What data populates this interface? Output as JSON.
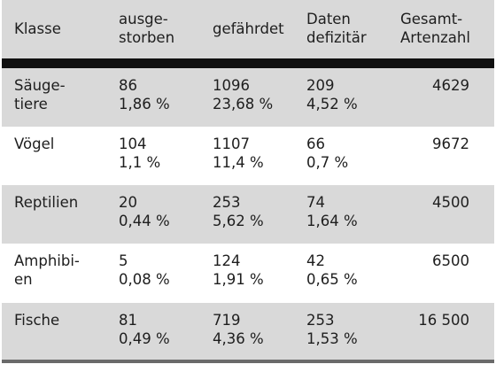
{
  "columns": [
    {
      "line1": "Klasse",
      "line2": ""
    },
    {
      "line1": "ausge-",
      "line2": "storben"
    },
    {
      "line1": "gefährdet",
      "line2": ""
    },
    {
      "line1": "Daten",
      "line2": "defizitär"
    },
    {
      "line1": "Gesamt-",
      "line2": "Artenzahl"
    }
  ],
  "rows": [
    {
      "klasse_1": "Säuge-",
      "klasse_2": "tiere",
      "ausgestorben_n": "86",
      "ausgestorben_p": "1,86 %",
      "gefaehrdet_n": "1096",
      "gefaehrdet_p": "23,68 %",
      "daten_n": "209",
      "daten_p": "4,52 %",
      "gesamt": "4629"
    },
    {
      "klasse_1": "Vögel",
      "klasse_2": "",
      "ausgestorben_n": "104",
      "ausgestorben_p": "1,1 %",
      "gefaehrdet_n": "1107",
      "gefaehrdet_p": "11,4 %",
      "daten_n": "66",
      "daten_p": "0,7 %",
      "gesamt": "9672"
    },
    {
      "klasse_1": "Reptilien",
      "klasse_2": "",
      "ausgestorben_n": "20",
      "ausgestorben_p": "0,44 %",
      "gefaehrdet_n": "253",
      "gefaehrdet_p": "5,62 %",
      "daten_n": "74",
      "daten_p": "1,64 %",
      "gesamt": "4500"
    },
    {
      "klasse_1": "Amphibi-",
      "klasse_2": "en",
      "ausgestorben_n": "5",
      "ausgestorben_p": "0,08 %",
      "gefaehrdet_n": "124",
      "gefaehrdet_p": "1,91 %",
      "daten_n": "42",
      "daten_p": "0,65 %",
      "gesamt": "6500"
    },
    {
      "klasse_1": "Fische",
      "klasse_2": "",
      "ausgestorben_n": "81",
      "ausgestorben_p": "0,49 %",
      "gefaehrdet_n": "719",
      "gefaehrdet_p": "4,36 %",
      "daten_n": "253",
      "daten_p": "1,53 %",
      "gesamt": "16 500"
    }
  ],
  "colors": {
    "shade": "#d9d9d9",
    "rule": "#101010"
  }
}
